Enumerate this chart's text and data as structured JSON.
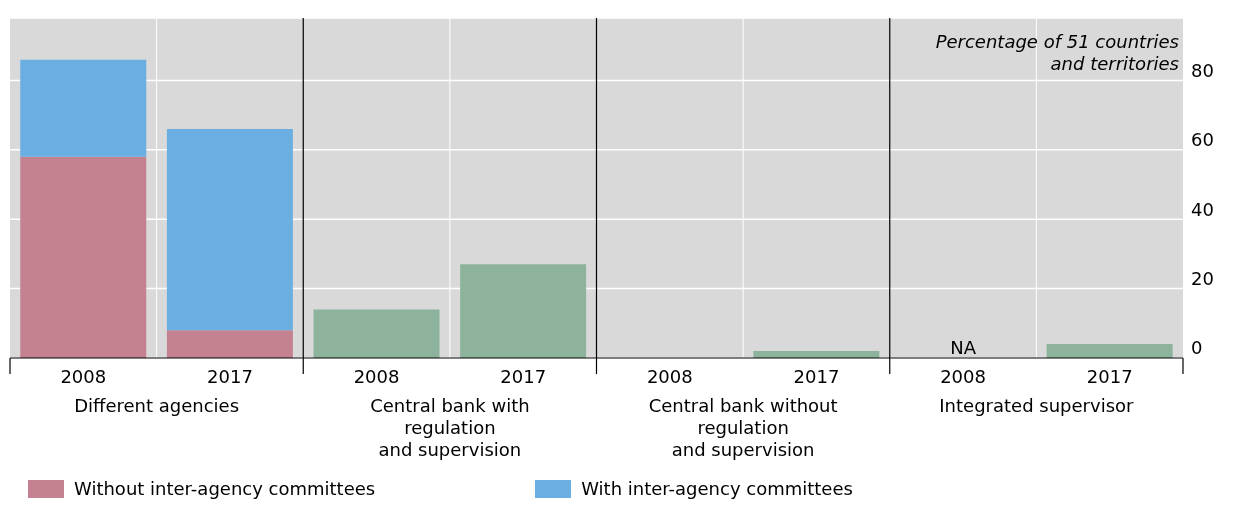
{
  "chart_data": {
    "type": "bar",
    "stacked": true,
    "categories": [
      "2008",
      "2017",
      "2008",
      "2017",
      "2008",
      "2017",
      "2008",
      "2017"
    ],
    "series": [
      {
        "name": "Without inter-agency committees",
        "color": "#c4818f",
        "colors": [
          "#c4818f",
          "#c4818f",
          "#8db39c",
          "#8db39c",
          "#8db39c",
          "#8db39c",
          "#8db39c",
          "#8db39c"
        ],
        "values": [
          58,
          8,
          14,
          27,
          0,
          2,
          null,
          4
        ]
      },
      {
        "name": "With inter-agency committees",
        "color": "#6aaee2",
        "values": [
          28,
          58,
          null,
          null,
          null,
          null,
          null,
          null
        ]
      }
    ],
    "ylim": [
      0,
      98
    ],
    "yticks": [
      0,
      20,
      40,
      60,
      80
    ],
    "grid": true,
    "legend": "bottom",
    "annotations": [
      "Different agencies",
      "Central bank with\nregulation\nand supervision",
      "Central bank without\nregulation\nand supervision",
      "Integrated supervisor",
      "NA",
      "Percentage of 51 countries\nand territories"
    ]
  }
}
